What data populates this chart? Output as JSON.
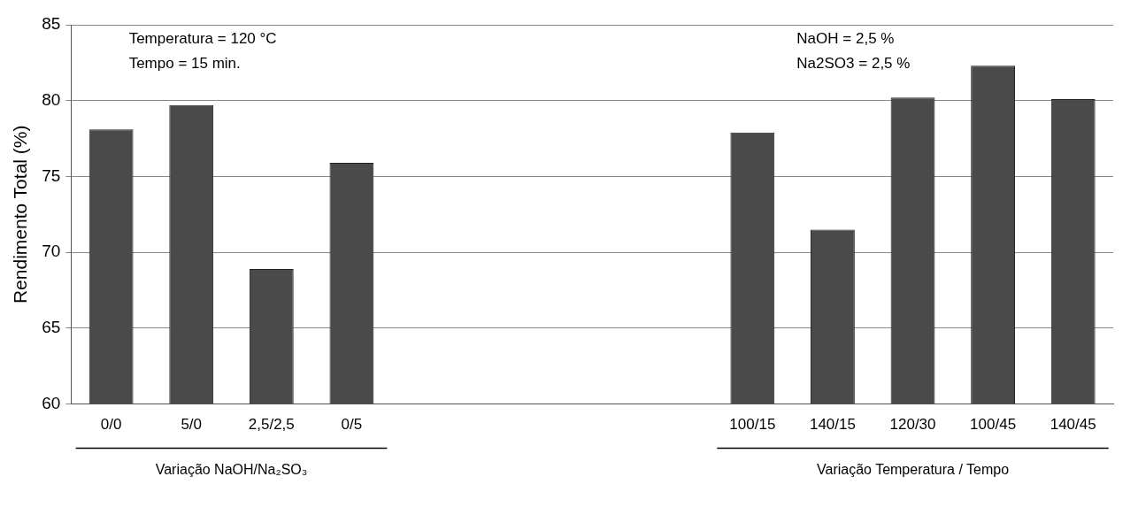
{
  "chart_data": {
    "type": "bar",
    "ylabel": "Rendimento Total (%)",
    "categories": [
      "0/0",
      "5/0",
      "2,5/2,5",
      "0/5",
      null,
      null,
      null,
      null,
      "100/15",
      "140/15",
      "120/30",
      "100/45",
      "140/45"
    ],
    "values": [
      78.1,
      79.7,
      68.9,
      75.9,
      null,
      null,
      null,
      null,
      77.9,
      71.5,
      80.2,
      82.3,
      80.1
    ],
    "color": "#4a4a4a",
    "ylim": [
      60,
      85
    ],
    "yticks": [
      60,
      65,
      70,
      75,
      80,
      85
    ],
    "grid": "y",
    "legend": false,
    "annotations": [
      "Temperatura = 120 °C",
      "Tempo = 15 min.",
      "NaOH = 2,5 %",
      "Na2SO3 = 2,5 %",
      "Variação NaOH/Na₂SO₃",
      "Variação Temperatura / Tempo"
    ]
  }
}
